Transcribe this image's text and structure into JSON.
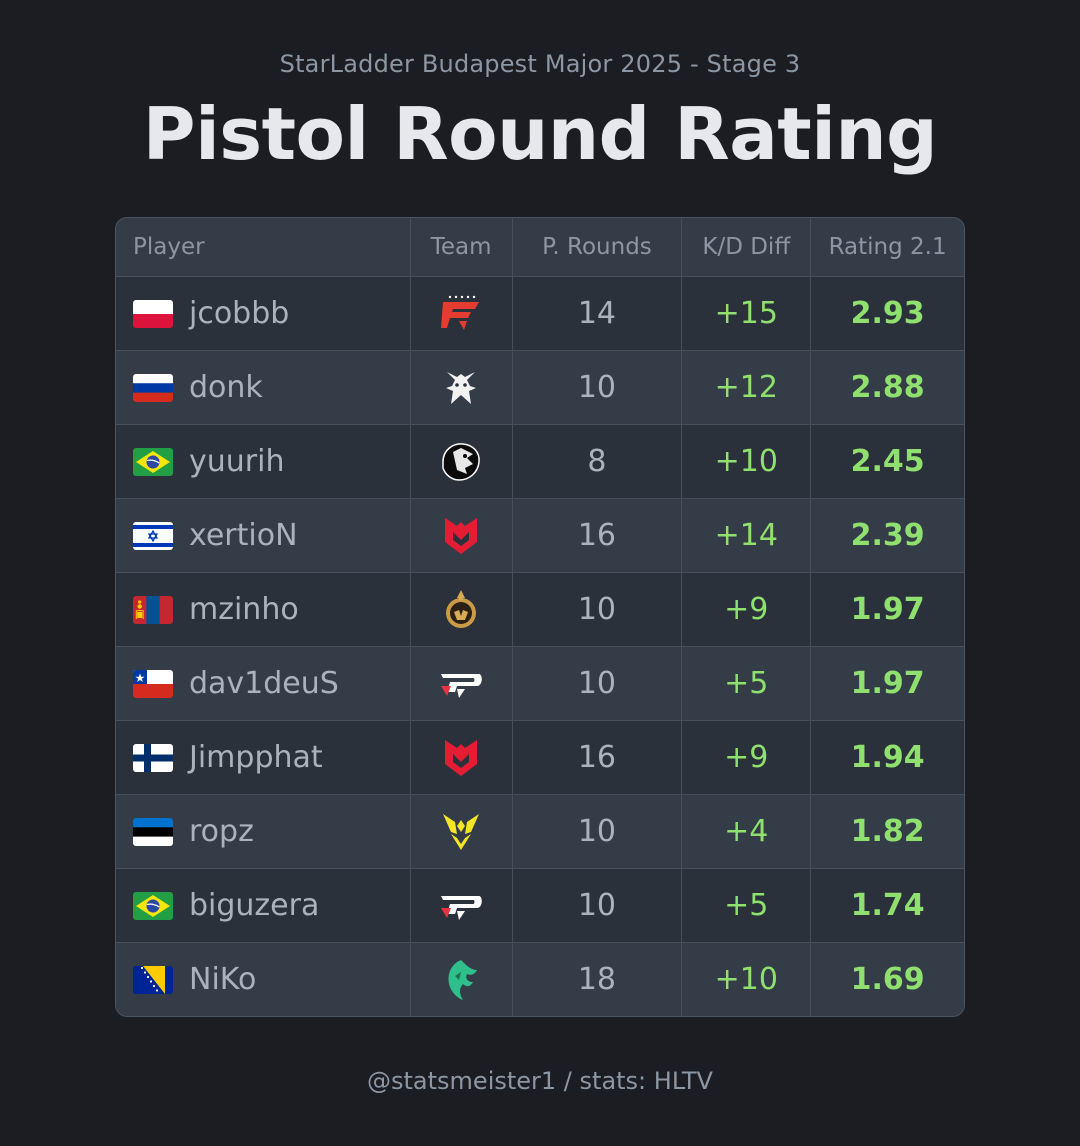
{
  "header": {
    "subtitle": "StarLadder Budapest Major 2025 - Stage 3",
    "title": "Pistol Round Rating"
  },
  "chart_data": {
    "type": "table",
    "columns": [
      "Player",
      "Team",
      "P. Rounds",
      "K/D Diff",
      "Rating 2.1"
    ],
    "rows": [
      {
        "player": "jcobbb",
        "flag": "poland-flag",
        "team": "faze-logo",
        "rounds": "14",
        "kd": "+15",
        "rating": "2.93"
      },
      {
        "player": "donk",
        "flag": "russia-flag",
        "team": "spirit-logo",
        "rounds": "10",
        "kd": "+12",
        "rating": "2.88"
      },
      {
        "player": "yuurih",
        "flag": "brazil-flag",
        "team": "furia-logo",
        "rounds": "8",
        "kd": "+10",
        "rating": "2.45"
      },
      {
        "player": "xertioN",
        "flag": "israel-flag",
        "team": "mouz-logo",
        "rounds": "16",
        "kd": "+14",
        "rating": "2.39"
      },
      {
        "player": "mzinho",
        "flag": "mongolia-flag",
        "team": "mongolz-logo",
        "rounds": "10",
        "kd": "+9",
        "rating": "1.97"
      },
      {
        "player": "dav1deuS",
        "flag": "chile-flag",
        "team": "pain-logo",
        "rounds": "10",
        "kd": "+5",
        "rating": "1.97"
      },
      {
        "player": "Jimpphat",
        "flag": "finland-flag",
        "team": "mouz-logo",
        "rounds": "16",
        "kd": "+9",
        "rating": "1.94"
      },
      {
        "player": "ropz",
        "flag": "estonia-flag",
        "team": "vitality-logo",
        "rounds": "10",
        "kd": "+4",
        "rating": "1.82"
      },
      {
        "player": "biguzera",
        "flag": "brazil-flag",
        "team": "pain-logo",
        "rounds": "10",
        "kd": "+5",
        "rating": "1.74"
      },
      {
        "player": "NiKo",
        "flag": "bosnia-flag",
        "team": "falcons-logo",
        "rounds": "18",
        "kd": "+10",
        "rating": "1.69"
      }
    ]
  },
  "footer": {
    "credit": "@statsmeister1 / stats: HLTV"
  },
  "colors": {
    "background": "#1b1d22",
    "positive": "#8fe06e",
    "muted_text": "#8d97a3"
  }
}
